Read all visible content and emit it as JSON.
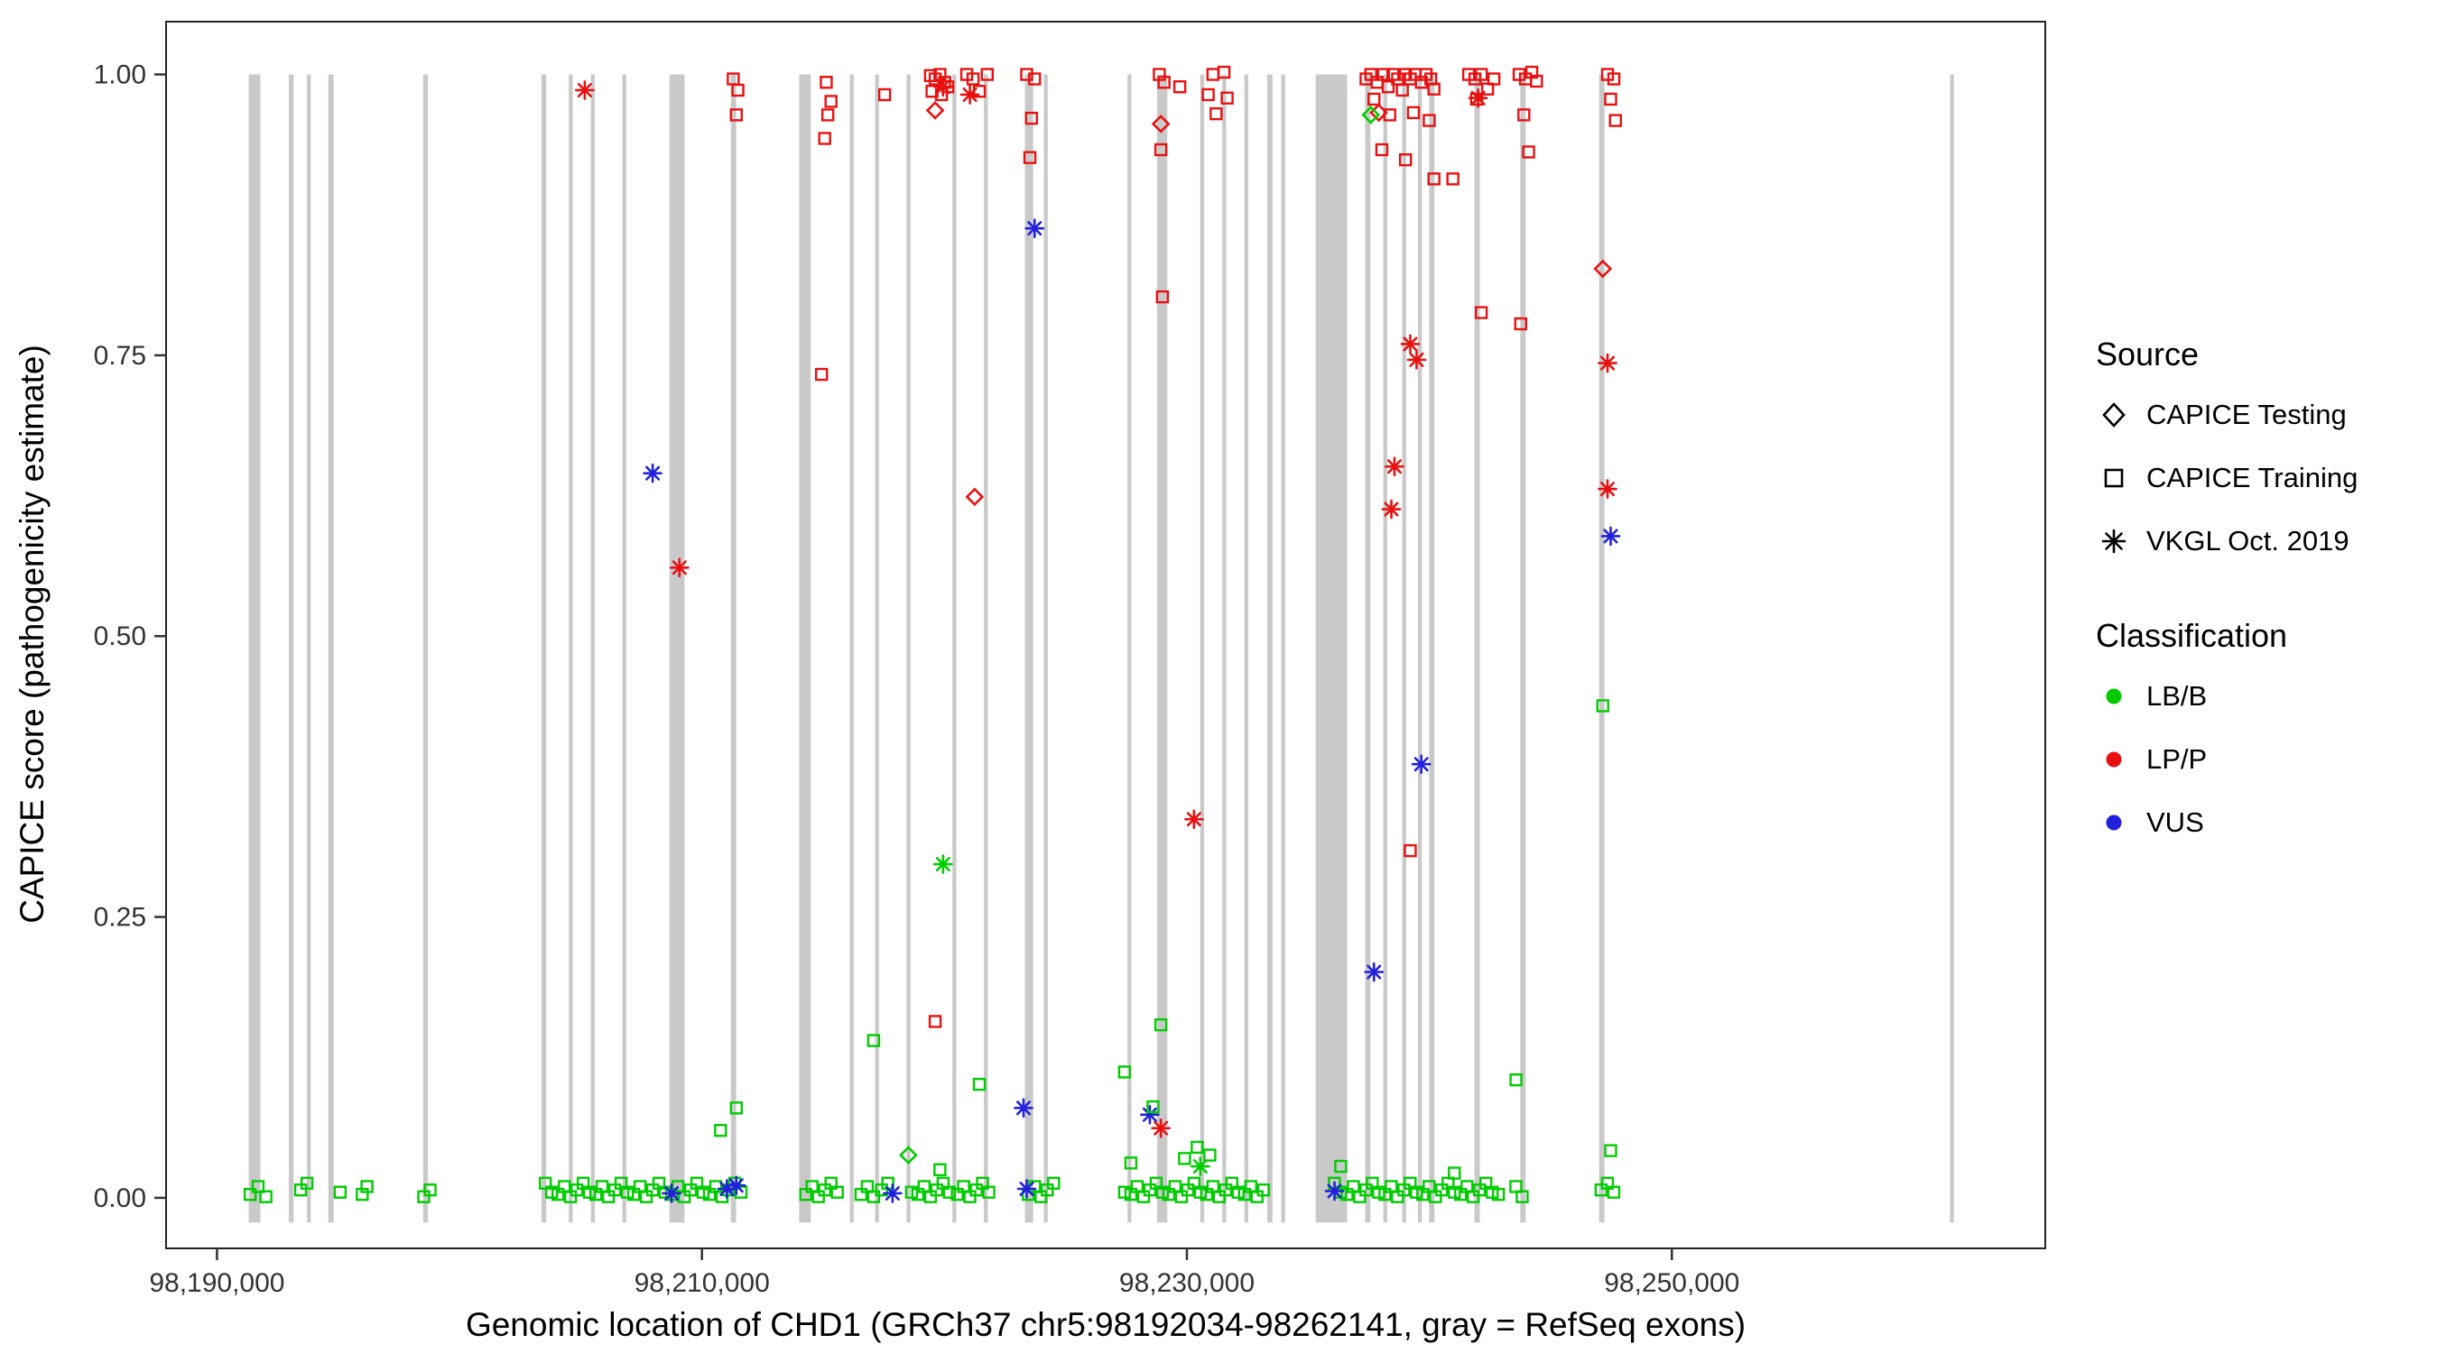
{
  "axes": {
    "x_label": "Genomic location of CHD1 (GRCh37 chr5:98192034-98262141, gray = RefSeq exons)",
    "y_label": "CAPICE score (pathogenicity estimate)",
    "x_ticks": [
      {
        "v": 98190000,
        "label": "98,190,000"
      },
      {
        "v": 98210000,
        "label": "98,210,000"
      },
      {
        "v": 98230000,
        "label": "98,230,000"
      },
      {
        "v": 98250000,
        "label": "98,250,000"
      }
    ],
    "y_ticks": [
      {
        "v": 0.0,
        "label": "0.00"
      },
      {
        "v": 0.25,
        "label": "0.25"
      },
      {
        "v": 0.5,
        "label": "0.50"
      },
      {
        "v": 0.75,
        "label": "0.75"
      },
      {
        "v": 1.0,
        "label": "1.00"
      }
    ]
  },
  "legend": {
    "source": {
      "title": "Source",
      "items": [
        {
          "label": "CAPICE Testing",
          "marker": "diamond"
        },
        {
          "label": "CAPICE Training",
          "marker": "square"
        },
        {
          "label": "VKGL Oct. 2019",
          "marker": "asterisk"
        }
      ]
    },
    "classification": {
      "title": "Classification",
      "items": [
        {
          "label": "LB/B",
          "color_key": "lb"
        },
        {
          "label": "LP/P",
          "color_key": "lp"
        },
        {
          "label": "VUS",
          "color_key": "vus"
        }
      ]
    }
  },
  "colors": {
    "lb": "#00CC00",
    "lp": "#E81010",
    "vus": "#2020DD",
    "exon": "#C9C9C9",
    "axis": "#333333"
  },
  "chart_data": {
    "type": "scatter",
    "title": "",
    "xlabel": "Genomic location of CHD1 (GRCh37 chr5:98192034-98262141, gray = RefSeq exons)",
    "ylabel": "CAPICE score (pathogenicity estimate)",
    "xlim": [
      98187900,
      98265400
    ],
    "ylim": [
      -0.045,
      1.047
    ],
    "exon_band": [
      -0.022,
      1.0
    ],
    "grid": false,
    "legend_position": "right",
    "exons": [
      [
        98191550,
        480
      ],
      [
        98193060,
        200
      ],
      [
        98193790,
        160
      ],
      [
        98194700,
        220
      ],
      [
        98198600,
        200
      ],
      [
        98203480,
        200
      ],
      [
        98204590,
        160
      ],
      [
        98205500,
        160
      ],
      [
        98206800,
        160
      ],
      [
        98208970,
        620
      ],
      [
        98211300,
        220
      ],
      [
        98214250,
        480
      ],
      [
        98216180,
        160
      ],
      [
        98217220,
        160
      ],
      [
        98218520,
        160
      ],
      [
        98220410,
        160
      ],
      [
        98221710,
        160
      ],
      [
        98223490,
        340
      ],
      [
        98224180,
        160
      ],
      [
        98227630,
        160
      ],
      [
        98228980,
        420
      ],
      [
        98230630,
        160
      ],
      [
        98231540,
        160
      ],
      [
        98232450,
        160
      ],
      [
        98233420,
        220
      ],
      [
        98233970,
        160
      ],
      [
        98235960,
        1300
      ],
      [
        98237460,
        220
      ],
      [
        98238180,
        160
      ],
      [
        98238960,
        160
      ],
      [
        98239610,
        160
      ],
      [
        98240100,
        220
      ],
      [
        98241970,
        220
      ],
      [
        98243860,
        220
      ],
      [
        98247110,
        220
      ],
      [
        98261550,
        160
      ]
    ],
    "point_format": [
      "x",
      "score",
      "classification: g=LB/B r=LP/P b=VUS",
      "source: d=CAPICE Testing s=CAPICE Training a=VKGL Oct. 2019"
    ],
    "points": [
      [
        98211290,
        0.996,
        "r",
        "s"
      ],
      [
        98211483,
        0.986,
        "r",
        "s"
      ],
      [
        98211418,
        0.964,
        "r",
        "s"
      ],
      [
        98215127,
        0.993,
        "r",
        "s"
      ],
      [
        98215322,
        0.976,
        "r",
        "s"
      ],
      [
        98215192,
        0.964,
        "r",
        "s"
      ],
      [
        98215062,
        0.943,
        "r",
        "s"
      ],
      [
        98214932,
        0.733,
        "r",
        "s"
      ],
      [
        98217536,
        0.982,
        "r",
        "s"
      ],
      [
        98219423,
        0.999,
        "r",
        "s"
      ],
      [
        98219618,
        0.996,
        "r",
        "s"
      ],
      [
        98219814,
        1.0,
        "r",
        "s"
      ],
      [
        98220009,
        0.993,
        "r",
        "s"
      ],
      [
        98219488,
        0.985,
        "r",
        "s"
      ],
      [
        98219879,
        0.982,
        "r",
        "s"
      ],
      [
        98220139,
        0.989,
        "r",
        "s"
      ],
      [
        98219618,
        0.157,
        "r",
        "s"
      ],
      [
        98220920,
        1.0,
        "r",
        "s"
      ],
      [
        98221181,
        0.996,
        "r",
        "s"
      ],
      [
        98221441,
        0.985,
        "r",
        "s"
      ],
      [
        98221766,
        1.0,
        "r",
        "s"
      ],
      [
        98223393,
        1.0,
        "r",
        "s"
      ],
      [
        98223719,
        0.996,
        "r",
        "s"
      ],
      [
        98223589,
        0.961,
        "r",
        "s"
      ],
      [
        98223524,
        0.926,
        "r",
        "s"
      ],
      [
        98228861,
        1.0,
        "r",
        "s"
      ],
      [
        98229056,
        0.993,
        "r",
        "s"
      ],
      [
        98228926,
        0.933,
        "r",
        "s"
      ],
      [
        98228991,
        0.802,
        "r",
        "s"
      ],
      [
        98229707,
        0.989,
        "r",
        "s"
      ],
      [
        98230879,
        0.982,
        "r",
        "s"
      ],
      [
        98231074,
        1.0,
        "r",
        "s"
      ],
      [
        98231530,
        1.002,
        "r",
        "s"
      ],
      [
        98231660,
        0.979,
        "r",
        "s"
      ],
      [
        98231204,
        0.965,
        "r",
        "s"
      ],
      [
        98237389,
        0.996,
        "r",
        "s"
      ],
      [
        98237584,
        1.0,
        "r",
        "s"
      ],
      [
        98237845,
        0.993,
        "r",
        "s"
      ],
      [
        98238105,
        1.0,
        "r",
        "s"
      ],
      [
        98238300,
        0.989,
        "r",
        "s"
      ],
      [
        98238496,
        1.0,
        "r",
        "s"
      ],
      [
        98238691,
        0.996,
        "r",
        "s"
      ],
      [
        98238886,
        0.986,
        "r",
        "s"
      ],
      [
        98239016,
        1.0,
        "r",
        "s"
      ],
      [
        98239212,
        0.996,
        "r",
        "s"
      ],
      [
        98239407,
        1.0,
        "r",
        "s"
      ],
      [
        98239667,
        0.993,
        "r",
        "s"
      ],
      [
        98239863,
        1.0,
        "r",
        "s"
      ],
      [
        98240058,
        0.996,
        "r",
        "s"
      ],
      [
        98240188,
        0.987,
        "r",
        "s"
      ],
      [
        98237715,
        0.978,
        "r",
        "s"
      ],
      [
        98238366,
        0.964,
        "r",
        "s"
      ],
      [
        98239342,
        0.966,
        "r",
        "s"
      ],
      [
        98239993,
        0.959,
        "r",
        "s"
      ],
      [
        98238040,
        0.933,
        "r",
        "s"
      ],
      [
        98239016,
        0.924,
        "r",
        "s"
      ],
      [
        98240188,
        0.907,
        "r",
        "s"
      ],
      [
        98239212,
        0.309,
        "r",
        "s"
      ],
      [
        98240969,
        0.907,
        "r",
        "s"
      ],
      [
        98241620,
        1.0,
        "r",
        "s"
      ],
      [
        98241880,
        0.996,
        "r",
        "s"
      ],
      [
        98242141,
        1.0,
        "r",
        "s"
      ],
      [
        98242401,
        0.987,
        "r",
        "s"
      ],
      [
        98242661,
        0.996,
        "r",
        "s"
      ],
      [
        98241945,
        0.978,
        "r",
        "s"
      ],
      [
        98242141,
        0.788,
        "r",
        "s"
      ],
      [
        98243702,
        1.0,
        "r",
        "s"
      ],
      [
        98243962,
        0.996,
        "r",
        "s"
      ],
      [
        98244222,
        1.002,
        "r",
        "s"
      ],
      [
        98244418,
        0.994,
        "r",
        "s"
      ],
      [
        98243897,
        0.964,
        "r",
        "s"
      ],
      [
        98244092,
        0.931,
        "r",
        "s"
      ],
      [
        98243767,
        0.778,
        "r",
        "s"
      ],
      [
        98247347,
        1.0,
        "r",
        "s"
      ],
      [
        98247608,
        0.996,
        "r",
        "s"
      ],
      [
        98247477,
        0.978,
        "r",
        "s"
      ],
      [
        98247673,
        0.959,
        "r",
        "s"
      ],
      [
        98219618,
        0.968,
        "r",
        "d"
      ],
      [
        98221246,
        0.624,
        "r",
        "d"
      ],
      [
        98228926,
        0.956,
        "r",
        "d"
      ],
      [
        98237910,
        0.966,
        "r",
        "d"
      ],
      [
        98247151,
        0.827,
        "r",
        "d"
      ],
      [
        98205167,
        0.986,
        "r",
        "a"
      ],
      [
        98209073,
        0.561,
        "r",
        "a"
      ],
      [
        98219944,
        0.989,
        "r",
        "a"
      ],
      [
        98221051,
        0.982,
        "r",
        "a"
      ],
      [
        98242010,
        0.979,
        "r",
        "a"
      ],
      [
        98230293,
        0.337,
        "r",
        "a"
      ],
      [
        98228926,
        0.062,
        "r",
        "a"
      ],
      [
        98238561,
        0.651,
        "r",
        "a"
      ],
      [
        98238431,
        0.613,
        "r",
        "a"
      ],
      [
        98239212,
        0.76,
        "r",
        "a"
      ],
      [
        98239472,
        0.746,
        "r",
        "a"
      ],
      [
        98247347,
        0.743,
        "r",
        "a"
      ],
      [
        98247347,
        0.631,
        "r",
        "a"
      ],
      [
        98237584,
        0.964,
        "g",
        "d"
      ],
      [
        98218512,
        0.038,
        "g",
        "d"
      ],
      [
        98219944,
        0.297,
        "g",
        "a"
      ],
      [
        98230553,
        0.028,
        "g",
        "a"
      ],
      [
        98207967,
        0.645,
        "b",
        "a"
      ],
      [
        98223719,
        0.863,
        "b",
        "a"
      ],
      [
        98239667,
        0.386,
        "b",
        "a"
      ],
      [
        98247477,
        0.589,
        "b",
        "a"
      ],
      [
        98237715,
        0.201,
        "b",
        "a"
      ],
      [
        98223263,
        0.08,
        "b",
        "a"
      ],
      [
        98228471,
        0.074,
        "b",
        "a"
      ],
      [
        98208748,
        0.004,
        "b",
        "a"
      ],
      [
        98211027,
        0.008,
        "b",
        "a"
      ],
      [
        98211418,
        0.011,
        "b",
        "a"
      ],
      [
        98217861,
        0.004,
        "b",
        "a"
      ],
      [
        98223393,
        0.008,
        "b",
        "a"
      ],
      [
        98236087,
        0.006,
        "b",
        "a"
      ],
      [
        98211418,
        0.08,
        "g",
        "s"
      ],
      [
        98210767,
        0.06,
        "g",
        "s"
      ],
      [
        98217080,
        0.14,
        "g",
        "s"
      ],
      [
        98221441,
        0.101,
        "g",
        "s"
      ],
      [
        98227430,
        0.112,
        "g",
        "s"
      ],
      [
        98228926,
        0.154,
        "g",
        "s"
      ],
      [
        98228601,
        0.081,
        "g",
        "s"
      ],
      [
        98243572,
        0.105,
        "g",
        "s"
      ],
      [
        98247151,
        0.438,
        "g",
        "s"
      ],
      [
        98247477,
        0.042,
        "g",
        "s"
      ],
      [
        98229902,
        0.035,
        "g",
        "s"
      ],
      [
        98230423,
        0.045,
        "g",
        "s"
      ],
      [
        98230944,
        0.038,
        "g",
        "s"
      ],
      [
        98227690,
        0.031,
        "g",
        "s"
      ],
      [
        98219814,
        0.025,
        "g",
        "s"
      ],
      [
        98236344,
        0.028,
        "g",
        "s"
      ],
      [
        98241029,
        0.022,
        "g",
        "s"
      ]
    ],
    "baseline_green": {
      "description": "CAPICE Training LB/B squares clustered at score ~0.00",
      "score_pattern": [
        0.003,
        0.01,
        0.001,
        0.007,
        0.013,
        0.005
      ],
      "x": [
        98191367,
        98191693,
        98192018,
        98193450,
        98193710,
        98195078,
        98195990,
        98196185,
        98198528,
        98198789,
        98203541,
        98203801,
        98204061,
        98204322,
        98204582,
        98204842,
        98205102,
        98205363,
        98205623,
        98205883,
        98206144,
        98206404,
        98206664,
        98206925,
        98207185,
        98207445,
        98207706,
        98207966,
        98208226,
        98208487,
        98208747,
        98209008,
        98209268,
        98209528,
        98209789,
        98210049,
        98210309,
        98210570,
        98210830,
        98211090,
        98211351,
        98211611,
        98214281,
        98214541,
        98214801,
        98215062,
        98215322,
        98215582,
        98216559,
        98216820,
        98217080,
        98217406,
        98217666,
        98218643,
        98218903,
        98219163,
        98219424,
        98219684,
        98219944,
        98220204,
        98220530,
        98220790,
        98221050,
        98221311,
        98221571,
        98221831,
        98223459,
        98223719,
        98223980,
        98224240,
        98224500,
        98227430,
        98227690,
        98227951,
        98228211,
        98228471,
        98228731,
        98228992,
        98229252,
        98229512,
        98229772,
        98230033,
        98230293,
        98230553,
        98230813,
        98231074,
        98231334,
        98231594,
        98231854,
        98232115,
        98232375,
        98232635,
        98232895,
        98233156,
        98236084,
        98236344,
        98236604,
        98236865,
        98237125,
        98237385,
        98237645,
        98237906,
        98238166,
        98238426,
        98238686,
        98238947,
        98239207,
        98239467,
        98239727,
        98239988,
        98240248,
        98240508,
        98240768,
        98241029,
        98241289,
        98241549,
        98241809,
        98242070,
        98242330,
        98242590,
        98242850,
        98243567,
        98243827,
        98247082,
        98247343,
        98247603
      ]
    }
  }
}
